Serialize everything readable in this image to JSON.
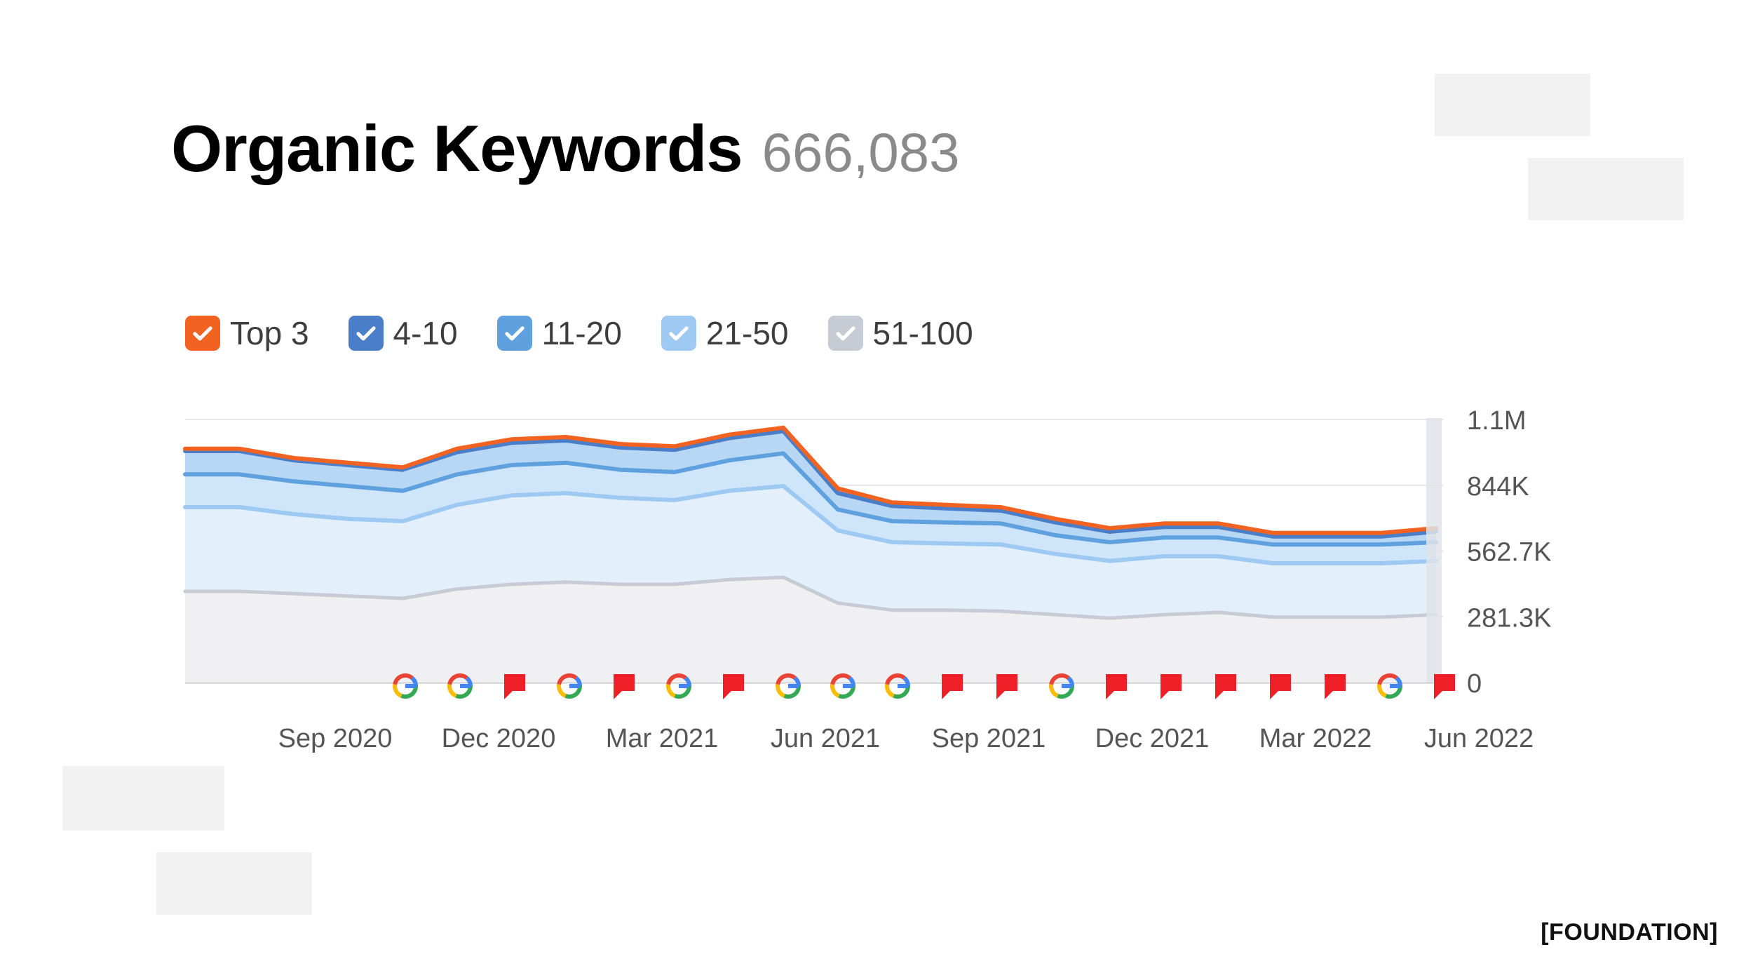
{
  "header": {
    "title": "Organic Keywords",
    "count": "666,083"
  },
  "legend": [
    {
      "label": "Top 3",
      "color": "#f26322"
    },
    {
      "label": "4-10",
      "color": "#4a7ec8"
    },
    {
      "label": "11-20",
      "color": "#5fa0de"
    },
    {
      "label": "21-50",
      "color": "#9ec9f2"
    },
    {
      "label": "51-100",
      "color": "#c7cbd3"
    }
  ],
  "brand": "[FOUNDATION]",
  "chart_data": {
    "type": "area",
    "x_tick_labels": [
      "Sep 2020",
      "Dec 2020",
      "Mar 2021",
      "Jun 2021",
      "Sep 2021",
      "Dec 2021",
      "Mar 2022",
      "Jun 2022"
    ],
    "y_tick_labels": [
      "0",
      "281.3K",
      "562.7K",
      "844K",
      "1.1M"
    ],
    "ylim": [
      0,
      1125000
    ],
    "x": [
      "2020-07",
      "2020-08",
      "2020-09",
      "2020-10",
      "2020-11",
      "2020-12",
      "2021-01",
      "2021-02",
      "2021-03",
      "2021-04",
      "2021-05",
      "2021-06",
      "2021-07",
      "2021-08",
      "2021-09",
      "2021-10",
      "2021-11",
      "2021-12",
      "2022-01",
      "2022-02",
      "2022-03",
      "2022-04",
      "2022-05",
      "2022-06"
    ],
    "series": [
      {
        "name": "Top 3",
        "color": "#f26322",
        "values": [
          1000000,
          1000000,
          960000,
          940000,
          920000,
          1000000,
          1040000,
          1050000,
          1020000,
          1010000,
          1060000,
          1090000,
          830000,
          770000,
          760000,
          750000,
          700000,
          660000,
          680000,
          680000,
          640000,
          640000,
          640000,
          660000
        ]
      },
      {
        "name": "4-10",
        "color": "#4a7ec8",
        "values": [
          990000,
          990000,
          950000,
          930000,
          910000,
          985000,
          1025000,
          1035000,
          1005000,
          995000,
          1045000,
          1075000,
          810000,
          755000,
          745000,
          735000,
          685000,
          645000,
          665000,
          665000,
          625000,
          625000,
          625000,
          645000
        ]
      },
      {
        "name": "11-20",
        "color": "#5fa0de",
        "values": [
          890000,
          890000,
          860000,
          840000,
          820000,
          890000,
          930000,
          940000,
          910000,
          900000,
          950000,
          980000,
          740000,
          690000,
          685000,
          680000,
          630000,
          600000,
          620000,
          620000,
          590000,
          590000,
          590000,
          600000
        ]
      },
      {
        "name": "21-50",
        "color": "#9ec9f2",
        "values": [
          750000,
          750000,
          720000,
          700000,
          690000,
          760000,
          800000,
          810000,
          790000,
          780000,
          820000,
          840000,
          650000,
          600000,
          595000,
          590000,
          550000,
          520000,
          540000,
          540000,
          510000,
          510000,
          510000,
          520000
        ]
      },
      {
        "name": "51-100",
        "color": "#c7cbd3",
        "values": [
          390000,
          390000,
          380000,
          370000,
          360000,
          400000,
          420000,
          430000,
          420000,
          420000,
          440000,
          450000,
          340000,
          310000,
          310000,
          305000,
          290000,
          275000,
          290000,
          300000,
          280000,
          280000,
          280000,
          290000
        ]
      }
    ],
    "markers": [
      "google",
      "google",
      "flag",
      "google",
      "flag",
      "google",
      "flag",
      "google",
      "google",
      "google",
      "flag",
      "flag",
      "google",
      "flag",
      "flag",
      "flag",
      "flag",
      "flag",
      "google",
      "flag"
    ],
    "grid": true,
    "legend_position": "top-left"
  }
}
